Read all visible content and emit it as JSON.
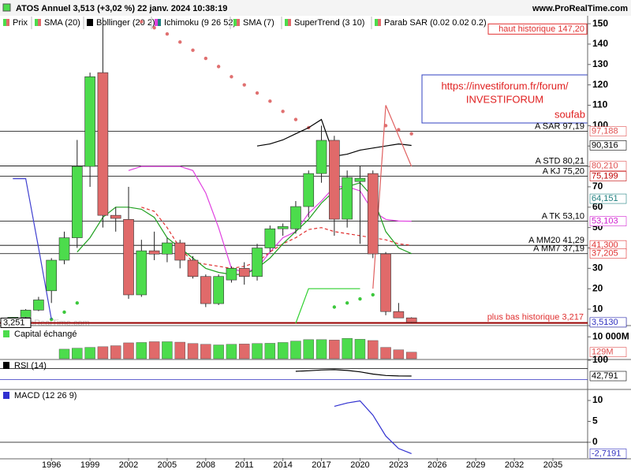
{
  "header": {
    "title": "ATOS Annuel 3,513 (+3,02 %) 22 janv. 2024 10:38:19",
    "site": "www.ProRealTime.com"
  },
  "legend": [
    "Prix",
    "SMA (20)",
    "Bollinger (20 2)",
    "Ichimoku (9 26 52)",
    "SMA (7)",
    "SuperTrend (3 10)",
    "Parab SAR (0.02 0.02 0.2)"
  ],
  "note_box": {
    "lines": [
      "https://investiforum.fr/forum/",
      "INVESTIFORUM"
    ],
    "author": "soufab"
  },
  "watermark": "©ProRealTime.com",
  "left_tag": {
    "label": "3,251",
    "value": 3.251
  },
  "chart_data": [
    {
      "type": "candlestick",
      "panel": "main",
      "x": [
        1993,
        1994,
        1995,
        1996,
        1997,
        1998,
        1999,
        2000,
        2001,
        2002,
        2003,
        2004,
        2005,
        2006,
        2007,
        2008,
        2009,
        2010,
        2011,
        2012,
        2013,
        2014,
        2015,
        2016,
        2017,
        2018,
        2019,
        2020,
        2021,
        2022,
        2023,
        2024
      ],
      "open": [
        4.5,
        6,
        9.5,
        19,
        34,
        45,
        80,
        126,
        56,
        54,
        17,
        38.6,
        37,
        42.5,
        34,
        26,
        12.7,
        24.3,
        30,
        26,
        40,
        49.4,
        49.4,
        60.3,
        76.5,
        92.8,
        54.1,
        72.6,
        76.5,
        37.1,
        8.8,
        5.7
      ],
      "high": [
        6,
        10,
        16,
        35,
        48,
        93,
        126,
        153,
        60,
        70,
        44,
        48,
        45,
        44,
        36,
        27,
        27,
        31,
        33,
        42,
        51,
        52,
        63,
        78,
        100,
        95,
        78,
        80,
        78,
        38,
        13,
        6
      ],
      "low": [
        3.5,
        5,
        9,
        13,
        32,
        40,
        70,
        50,
        48,
        15,
        16,
        34,
        33,
        30,
        25,
        11,
        12,
        23,
        22,
        24,
        38,
        46,
        47,
        55,
        72,
        46,
        50,
        42,
        35,
        7,
        6,
        3.2
      ],
      "close": [
        6,
        9.5,
        14.5,
        34,
        45,
        80,
        124,
        56,
        54.5,
        17,
        38.6,
        37,
        42.5,
        34,
        26,
        12.7,
        26,
        30,
        26,
        40,
        49.4,
        50.5,
        60.3,
        76.5,
        92.8,
        54.1,
        74.6,
        74.2,
        37.1,
        8.8,
        5.7,
        3.513
      ],
      "up_color": "#4cdc4c",
      "down_color": "#e06a6a",
      "xlim": [
        1992.0,
        2037.7
      ],
      "xticks": [
        1996,
        1999,
        2002,
        2005,
        2008,
        2011,
        2014,
        2017,
        2020,
        2023,
        2026,
        2029,
        2032,
        2035
      ],
      "ylim": [
        2.3,
        153.9
      ],
      "yticks": [
        10,
        20,
        30,
        40,
        50,
        60,
        70,
        80,
        90,
        100,
        110,
        120,
        130,
        140,
        150
      ],
      "series": [
        {
          "color": "#e07070",
          "marker": "dot",
          "values": [
            null,
            null,
            null,
            null,
            null,
            null,
            null,
            null,
            null,
            null,
            151,
            148,
            145,
            141,
            137,
            133,
            129,
            124,
            120,
            116,
            112,
            107,
            103,
            99,
            null,
            null,
            null,
            null,
            null,
            100,
            98,
            96
          ]
        },
        {
          "color": "#3cc83c",
          "marker": "dot",
          "values": [
            null,
            null,
            null,
            5,
            8.5,
            13,
            null,
            null,
            null,
            null,
            null,
            null,
            null,
            null,
            null,
            null,
            null,
            null,
            null,
            null,
            null,
            null,
            null,
            null,
            null,
            11,
            13,
            15,
            17,
            null,
            null,
            null
          ]
        },
        {
          "color": "#000000",
          "values": [
            null,
            null,
            null,
            null,
            null,
            null,
            null,
            null,
            null,
            null,
            null,
            null,
            null,
            null,
            null,
            null,
            null,
            null,
            null,
            90,
            91,
            93,
            96,
            99,
            103,
            85,
            86,
            88,
            89,
            90,
            91,
            90.3
          ]
        },
        {
          "color": "#e040e0",
          "values": [
            null,
            null,
            null,
            null,
            null,
            null,
            null,
            null,
            null,
            78,
            80,
            80,
            80,
            80,
            78,
            67,
            50,
            30,
            28,
            30,
            38,
            45,
            48,
            57,
            63,
            70,
            70,
            68,
            58,
            54,
            53.2,
            53.103
          ]
        },
        {
          "color": "#e03030",
          "dash": true,
          "values": [
            null,
            null,
            null,
            null,
            null,
            null,
            null,
            null,
            null,
            null,
            60,
            58,
            50,
            40,
            33,
            32,
            31,
            30,
            31,
            33,
            38,
            42,
            45,
            49,
            50,
            48,
            47,
            46,
            45,
            44,
            42,
            41.3
          ]
        },
        {
          "color": "#20a020",
          "values": [
            null,
            null,
            null,
            null,
            null,
            38,
            45,
            55,
            60,
            60,
            59,
            55,
            45,
            40,
            35,
            30,
            28,
            27,
            27,
            30,
            35,
            42,
            48,
            54,
            62,
            68,
            70,
            72,
            65,
            48,
            40,
            37.205
          ]
        },
        {
          "color": "#4040d0",
          "values": [
            74,
            74,
            40,
            5,
            null,
            null,
            null,
            null,
            null,
            null,
            null,
            null,
            null,
            null,
            null,
            null,
            null,
            null,
            null,
            null,
            null,
            null,
            null,
            null,
            null,
            null,
            null,
            null,
            null,
            null,
            null,
            null
          ]
        },
        {
          "color": "#30d030",
          "values": [
            null,
            null,
            null,
            null,
            null,
            null,
            null,
            null,
            null,
            null,
            null,
            null,
            null,
            null,
            null,
            null,
            null,
            null,
            null,
            null,
            null,
            null,
            3,
            20,
            20,
            20,
            20,
            20,
            null,
            null,
            null,
            null
          ]
        },
        {
          "color": "#e06060",
          "values": [
            null,
            null,
            null,
            null,
            null,
            null,
            null,
            null,
            null,
            null,
            null,
            null,
            null,
            null,
            null,
            null,
            null,
            null,
            null,
            null,
            null,
            null,
            null,
            null,
            null,
            null,
            null,
            null,
            20,
            110,
            95,
            80
          ]
        }
      ],
      "annotations": [
        {
          "text": "A SAR 97,19",
          "value": 97.19
        },
        {
          "text": "A STD 80,21",
          "value": 80.21
        },
        {
          "text": "A KJ 75,20",
          "value": 75.2
        },
        {
          "text": "A TK 53,10",
          "value": 53.1
        },
        {
          "text": "A MM20 41,29",
          "value": 41.29
        },
        {
          "text": "A MM7 37,19",
          "value": 37.19
        }
      ],
      "high_label": {
        "text": "haut historique 147,20",
        "value": 147.2
      },
      "low_label": {
        "text": "plus bas historique 3,217",
        "value": 3.217
      },
      "tags": [
        {
          "label": "97,188",
          "value": 97.188,
          "color": "#e05050"
        },
        {
          "label": "90,316",
          "value": 90.316,
          "color": "#000000"
        },
        {
          "label": "80,210",
          "value": 80.21,
          "color": "#e05050"
        },
        {
          "label": "75,199",
          "value": 75.199,
          "color": "#c00000"
        },
        {
          "label": "64,151",
          "value": 64.151,
          "color": "#208080"
        },
        {
          "label": "53,103",
          "value": 53.103,
          "color": "#d020d0"
        },
        {
          "label": "41,300",
          "value": 41.3,
          "color": "#e03030"
        },
        {
          "label": "37,205",
          "value": 37.205,
          "color": "#e03030"
        },
        {
          "label": "3,513",
          "value": 3.513,
          "color": "#000000",
          "background": "#f2c230"
        },
        {
          "label": "3,5130",
          "value": 3.513,
          "color": "#3030c0"
        }
      ]
    },
    {
      "type": "bar",
      "panel": "volume",
      "title": "Capital échangé",
      "log": true,
      "x": [
        1997,
        1998,
        1999,
        2000,
        2001,
        2002,
        2003,
        2004,
        2005,
        2006,
        2007,
        2008,
        2009,
        2010,
        2011,
        2012,
        2013,
        2014,
        2015,
        2016,
        2017,
        2018,
        2019,
        2020,
        2021,
        2022,
        2023,
        2024
      ],
      "values": [
        300,
        400,
        500,
        600,
        800,
        1800,
        2000,
        2500,
        2500,
        2200,
        1500,
        1200,
        1000,
        1200,
        1300,
        1500,
        1600,
        2000,
        3000,
        4500,
        4500,
        4000,
        6500,
        5000,
        3500,
        500,
        250,
        129
      ],
      "ylim": [
        20,
        100000
      ],
      "yticks": [
        {
          "value": 10000,
          "label": "10 000M"
        }
      ],
      "tags": [
        {
          "label": "129M",
          "value": 129,
          "color": "#e05050"
        }
      ]
    },
    {
      "type": "line",
      "panel": "rsi",
      "title": "RSI (14)",
      "x": [
        2015,
        2016,
        2017,
        2018,
        2019,
        2020,
        2021,
        2022,
        2023,
        2024
      ],
      "values": [
        60,
        62,
        65,
        66,
        63,
        58,
        50,
        45,
        43,
        42.791
      ],
      "color": "#000000",
      "ylim": [
        0,
        100
      ],
      "yticks": [
        100
      ],
      "levels": [
        70,
        30
      ],
      "level_colors": [
        "#000000",
        "#3030c0"
      ],
      "tags": [
        {
          "label": "42,791",
          "value": 42.791,
          "color": "#000000"
        }
      ]
    },
    {
      "type": "line",
      "panel": "macd",
      "title": "MACD (12 26 9)",
      "x": [
        2018,
        2019,
        2020,
        2021,
        2022,
        2023,
        2024
      ],
      "values": [
        8.6,
        9.4,
        9.9,
        6.5,
        1.5,
        -1.5,
        -2.7191
      ],
      "color": "#3030d0",
      "ylim": [
        -3.58,
        12.45
      ],
      "yticks": [
        0,
        5,
        10
      ],
      "levels": [
        0
      ],
      "level_colors": [
        "#000000"
      ],
      "tags": [
        {
          "label": "-2,7191",
          "value": -2.7191,
          "color": "#3030c0"
        }
      ]
    }
  ]
}
